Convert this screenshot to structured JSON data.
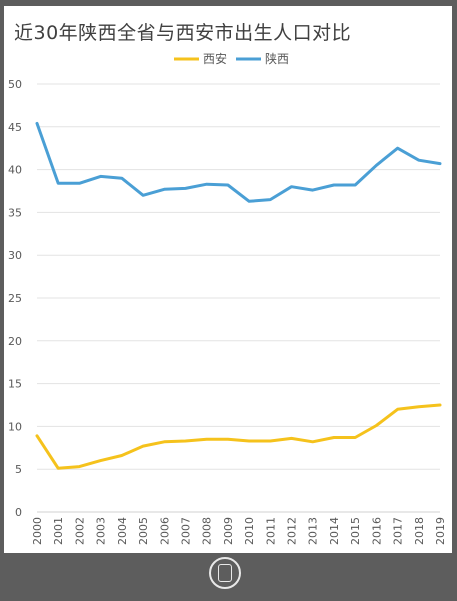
{
  "chart_data": {
    "type": "line",
    "title": "近30年陕西全省与西安市出生人口对比",
    "xlabel": "",
    "ylabel": "",
    "categories": [
      "2000",
      "2001",
      "2002",
      "2003",
      "2004",
      "2005",
      "2006",
      "2007",
      "2008",
      "2009",
      "2010",
      "2011",
      "2012",
      "2013",
      "2014",
      "2015",
      "2016",
      "2017",
      "2018",
      "2019"
    ],
    "ylim": [
      0,
      50
    ],
    "yticks": [
      0,
      5,
      10,
      15,
      20,
      25,
      30,
      35,
      40,
      45,
      50
    ],
    "grid": true,
    "legend_position": "top-center",
    "series": [
      {
        "name": "西安",
        "color": "#f5c21c",
        "values": [
          8.9,
          5.1,
          5.3,
          6.0,
          6.6,
          7.7,
          8.2,
          8.3,
          8.5,
          8.5,
          8.3,
          8.3,
          8.6,
          8.2,
          8.7,
          8.7,
          10.1,
          12.0,
          12.3,
          12.5
        ]
      },
      {
        "name": "陕西",
        "color": "#4a9fd5",
        "values": [
          45.4,
          38.4,
          38.4,
          39.2,
          39.0,
          37.0,
          37.7,
          37.8,
          38.3,
          38.2,
          36.3,
          36.5,
          38.0,
          37.6,
          38.2,
          38.2,
          40.5,
          42.5,
          41.1,
          40.7
        ]
      }
    ]
  }
}
